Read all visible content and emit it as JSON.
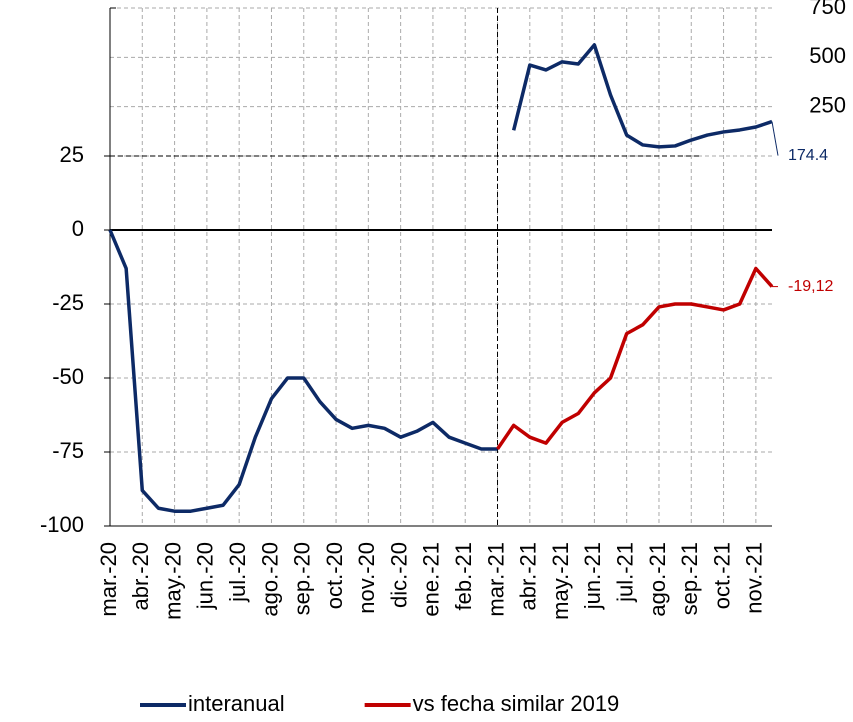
{
  "chart_data": {
    "type": "line",
    "categories": [
      "mar.-20",
      null,
      "abr.-20",
      null,
      "may.-20",
      null,
      "jun.-20",
      null,
      "jul.-20",
      null,
      "ago.-20",
      null,
      "sep.-20",
      null,
      "oct.-20",
      null,
      "nov.-20",
      null,
      "dic.-20",
      null,
      "ene.-21",
      null,
      "feb.-21",
      null,
      "mar.-21",
      null,
      "abr.-21",
      null,
      "may.-21",
      null,
      "jun.-21",
      null,
      "jul.-21",
      null,
      "ago.-21",
      null,
      "sep.-21",
      null,
      "oct.-21",
      null,
      "nov.-21",
      null
    ],
    "series": [
      {
        "name": "interanual",
        "color": "#0d2a66",
        "values": [
          0,
          -13,
          -88,
          -94,
          -95,
          -95,
          -94,
          -93,
          -86,
          -70,
          -57,
          -50,
          -50,
          -58,
          -64,
          -67,
          -66,
          -67,
          -70,
          -68,
          -65,
          -70,
          -72,
          -74,
          -74,
          null,
          null,
          null,
          null,
          null,
          null,
          null,
          null,
          null,
          null,
          null,
          null,
          null,
          null,
          null,
          null,
          null
        ]
      },
      {
        "name": "interanual",
        "color": "#0d2a66",
        "axis": "y2",
        "values": [
          null,
          null,
          null,
          null,
          null,
          null,
          null,
          null,
          null,
          null,
          null,
          null,
          null,
          null,
          null,
          null,
          null,
          null,
          null,
          null,
          null,
          null,
          null,
          null,
          null,
          130,
          461,
          436,
          477,
          466,
          563,
          309,
          106,
          56,
          46,
          51,
          81,
          106,
          122,
          132,
          147,
          174.4
        ],
        "value_labels": [
          null,
          null,
          null,
          null,
          null,
          null,
          null,
          null,
          null,
          null,
          null,
          null,
          null,
          null,
          null,
          null,
          null,
          null,
          null,
          null,
          null,
          null,
          null,
          null,
          null,
          null,
          null,
          null,
          null,
          null,
          null,
          null,
          null,
          null,
          null,
          null,
          null,
          null,
          null,
          null,
          null,
          "174.4"
        ]
      },
      {
        "name": "vs fecha similar 2019",
        "color": "#c00000",
        "values": [
          null,
          null,
          null,
          null,
          null,
          null,
          null,
          null,
          null,
          null,
          null,
          null,
          null,
          null,
          null,
          null,
          null,
          null,
          null,
          null,
          null,
          null,
          null,
          null,
          -74,
          -66,
          -70,
          -72,
          -65,
          -62,
          -55,
          -50,
          -35,
          -32,
          -26,
          -25,
          -25,
          -26,
          -27,
          -25,
          -13,
          -19.12
        ],
        "value_labels": [
          null,
          null,
          null,
          null,
          null,
          null,
          null,
          null,
          null,
          null,
          null,
          null,
          null,
          null,
          null,
          null,
          null,
          null,
          null,
          null,
          null,
          null,
          null,
          null,
          null,
          null,
          null,
          null,
          null,
          null,
          null,
          null,
          null,
          null,
          null,
          null,
          null,
          null,
          null,
          null,
          null,
          "-19,12"
        ]
      }
    ],
    "ylim": [
      -100,
      75
    ],
    "yticks": [
      -100,
      -75,
      -50,
      -25,
      0,
      25
    ],
    "y2lim": [
      -1875,
      750
    ],
    "y2ticks": [
      250,
      500,
      750
    ],
    "grid": true
  }
}
